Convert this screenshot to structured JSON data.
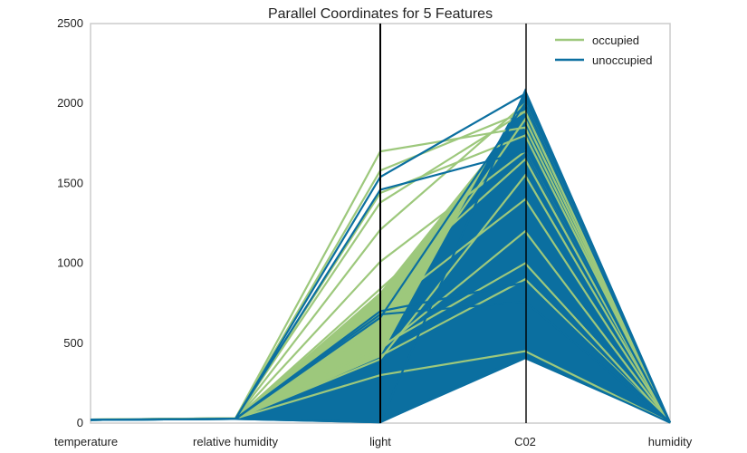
{
  "chart_data": {
    "type": "parallel_coordinates",
    "title": "Parallel Coordinates for 5 Features",
    "axes": [
      "temperature",
      "relative humidity",
      "light",
      "C02",
      "humidity"
    ],
    "ylim": [
      0,
      2500
    ],
    "yticks": [
      0,
      500,
      1000,
      1500,
      2000,
      2500
    ],
    "legend_position": "top-right",
    "series": [
      {
        "name": "occupied",
        "color": "#9DC87C",
        "lines": [
          [
            22,
            30,
            1700,
            1850,
            3
          ],
          [
            22,
            30,
            1580,
            1950,
            3
          ],
          [
            21,
            29,
            1440,
            1800,
            3
          ],
          [
            22,
            30,
            1380,
            1950,
            3
          ],
          [
            21,
            29,
            1210,
            2000,
            3
          ],
          [
            21,
            28,
            1010,
            1700,
            3
          ],
          [
            20,
            27,
            840,
            1650,
            3
          ],
          [
            21,
            28,
            700,
            1400,
            3
          ],
          [
            22,
            30,
            600,
            1900,
            3
          ],
          [
            21,
            29,
            480,
            1000,
            3
          ],
          [
            20,
            27,
            420,
            900,
            3
          ],
          [
            21,
            28,
            400,
            1550,
            3
          ],
          [
            22,
            31,
            460,
            1200,
            3
          ],
          [
            21,
            29,
            300,
            450,
            3
          ]
        ],
        "bands": [
          {
            "light": [
              380,
              820
            ],
            "co2": [
              950,
              1950
            ]
          },
          {
            "light": [
              330,
              480
            ],
            "co2": [
              650,
              1000
            ]
          }
        ]
      },
      {
        "name": "unoccupied",
        "color": "#0B6FA0",
        "lines": [
          [
            20,
            26,
            1540,
            2060,
            3
          ],
          [
            20,
            27,
            1460,
            1700,
            3
          ],
          [
            20,
            26,
            700,
            880,
            3
          ],
          [
            21,
            27,
            680,
            760,
            3
          ],
          [
            20,
            26,
            660,
            2000,
            3
          ],
          [
            20,
            26,
            5,
            2080,
            3
          ],
          [
            20,
            26,
            5,
            420,
            3
          ]
        ],
        "bands": [
          {
            "light": [
              0,
              420
            ],
            "co2": [
              400,
              2070
            ]
          }
        ]
      }
    ]
  }
}
